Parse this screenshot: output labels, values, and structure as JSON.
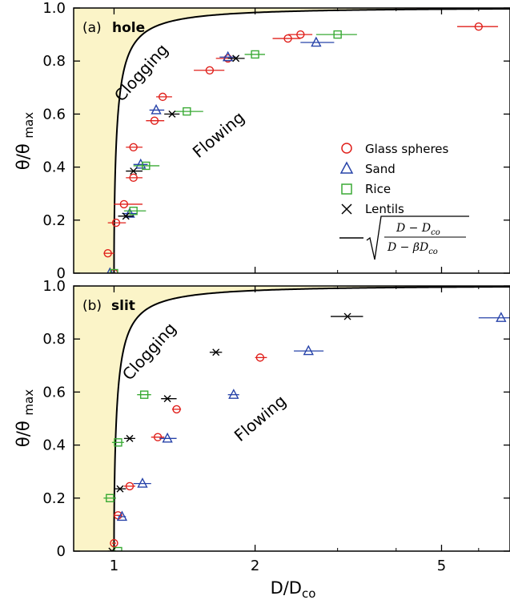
{
  "chart_data": [
    {
      "type": "scatter",
      "id": "hole",
      "panel_tag": "(a)",
      "title": "hole",
      "xlabel": "",
      "ylabel": "θ/θmax",
      "xscale": "log",
      "xlim": [
        0.82,
        7.0
      ],
      "ylim": [
        0,
        1.0
      ],
      "yticks": [
        0,
        0.2,
        0.4,
        0.6,
        0.8,
        1.0
      ],
      "ytick_labels": [
        "0",
        "0.2",
        "0.4",
        "0.6",
        "0.8",
        "1.0"
      ],
      "xticks": [
        1,
        2,
        5
      ],
      "region_labels": {
        "upper": "Clogging",
        "lower": "Flowing"
      },
      "legend": {
        "placement": "right-middle"
      },
      "curve": {
        "beta": 0.965
      },
      "series": [
        {
          "name": "Glass spheres",
          "marker": "circle",
          "color": "#e0201b",
          "points": [
            {
              "x": 0.97,
              "y": 0.075,
              "xerr": [
                0.95,
                1.0
              ]
            },
            {
              "x": 1.0,
              "y": 0.0,
              "xerr": [
                0.99,
                1.01
              ]
            },
            {
              "x": 1.01,
              "y": 0.19,
              "xerr": [
                0.97,
                1.06
              ]
            },
            {
              "x": 1.05,
              "y": 0.26,
              "xerr": [
                1.0,
                1.15
              ]
            },
            {
              "x": 1.1,
              "y": 0.36,
              "xerr": [
                1.06,
                1.15
              ]
            },
            {
              "x": 1.1,
              "y": 0.475,
              "xerr": [
                1.06,
                1.15
              ]
            },
            {
              "x": 1.22,
              "y": 0.575,
              "xerr": [
                1.17,
                1.28
              ]
            },
            {
              "x": 1.27,
              "y": 0.665,
              "xerr": [
                1.23,
                1.33
              ]
            },
            {
              "x": 1.6,
              "y": 0.765,
              "xerr": [
                1.48,
                1.72
              ]
            },
            {
              "x": 1.75,
              "y": 0.81,
              "xerr": [
                1.65,
                1.82
              ]
            },
            {
              "x": 2.35,
              "y": 0.885,
              "xerr": [
                2.18,
                2.5
              ]
            },
            {
              "x": 2.5,
              "y": 0.9,
              "xerr": [
                2.35,
                2.65
              ]
            },
            {
              "x": 6.0,
              "y": 0.93,
              "xerr": [
                5.4,
                6.6
              ]
            }
          ]
        },
        {
          "name": "Sand",
          "marker": "triangle",
          "color": "#2743a9",
          "points": [
            {
              "x": 0.98,
              "y": 0.0,
              "xerr": [
                0.97,
                1.0
              ]
            },
            {
              "x": 1.08,
              "y": 0.225,
              "xerr": [
                1.04,
                1.12
              ]
            },
            {
              "x": 1.14,
              "y": 0.41,
              "xerr": [
                1.1,
                1.18
              ]
            },
            {
              "x": 1.23,
              "y": 0.615,
              "xerr": [
                1.19,
                1.28
              ]
            },
            {
              "x": 1.75,
              "y": 0.815,
              "xerr": [
                1.68,
                1.82
              ]
            },
            {
              "x": 2.7,
              "y": 0.87,
              "xerr": [
                2.5,
                2.95
              ]
            }
          ]
        },
        {
          "name": "Rice",
          "marker": "square",
          "color": "#3aaa35",
          "points": [
            {
              "x": 1.0,
              "y": 0.0,
              "xerr": [
                0.99,
                1.01
              ]
            },
            {
              "x": 1.1,
              "y": 0.235,
              "xerr": [
                1.05,
                1.17
              ]
            },
            {
              "x": 1.17,
              "y": 0.405,
              "xerr": [
                1.1,
                1.25
              ]
            },
            {
              "x": 1.43,
              "y": 0.61,
              "xerr": [
                1.35,
                1.55
              ]
            },
            {
              "x": 2.0,
              "y": 0.825,
              "xerr": [
                1.9,
                2.1
              ]
            },
            {
              "x": 3.0,
              "y": 0.9,
              "xerr": [
                2.7,
                3.3
              ]
            }
          ]
        },
        {
          "name": "Lentils",
          "marker": "cross",
          "color": "#000000",
          "points": [
            {
              "x": 1.06,
              "y": 0.215,
              "xerr": [
                1.02,
                1.1
              ]
            },
            {
              "x": 1.1,
              "y": 0.385,
              "xerr": [
                1.06,
                1.15
              ]
            },
            {
              "x": 1.33,
              "y": 0.6,
              "xerr": [
                1.28,
                1.38
              ]
            },
            {
              "x": 1.82,
              "y": 0.81,
              "xerr": [
                1.75,
                1.9
              ]
            }
          ]
        }
      ]
    },
    {
      "type": "scatter",
      "id": "slit",
      "panel_tag": "(b)",
      "title": "slit",
      "xlabel": "D/Dco",
      "ylabel": "θ/θmax",
      "xscale": "log",
      "xlim": [
        0.82,
        7.0
      ],
      "ylim": [
        0,
        1.0
      ],
      "yticks": [
        0,
        0.2,
        0.4,
        0.6,
        0.8,
        1.0
      ],
      "ytick_labels": [
        "0",
        "0.2",
        "0.4",
        "0.6",
        "0.8",
        "1.0"
      ],
      "xticks": [
        1,
        2,
        5
      ],
      "xtick_labels": [
        "1",
        "2",
        "5"
      ],
      "region_labels": {
        "upper": "Clogging",
        "lower": "Flowing"
      },
      "curve": {
        "beta": 0.965
      },
      "series": [
        {
          "name": "Glass spheres",
          "marker": "circle",
          "color": "#e0201b",
          "points": [
            {
              "x": 1.0,
              "y": 0.03,
              "xerr": [
                0.99,
                1.01
              ]
            },
            {
              "x": 1.02,
              "y": 0.135,
              "xerr": [
                1.0,
                1.04
              ]
            },
            {
              "x": 1.08,
              "y": 0.245,
              "xerr": [
                1.05,
                1.11
              ]
            },
            {
              "x": 1.24,
              "y": 0.43,
              "xerr": [
                1.2,
                1.28
              ]
            },
            {
              "x": 1.36,
              "y": 0.535,
              "xerr": [
                1.33,
                1.39
              ]
            },
            {
              "x": 2.05,
              "y": 0.73,
              "xerr": [
                2.0,
                2.12
              ]
            }
          ]
        },
        {
          "name": "Sand",
          "marker": "triangle",
          "color": "#2743a9",
          "points": [
            {
              "x": 1.04,
              "y": 0.13,
              "xerr": [
                1.02,
                1.06
              ]
            },
            {
              "x": 1.15,
              "y": 0.255,
              "xerr": [
                1.1,
                1.2
              ]
            },
            {
              "x": 1.3,
              "y": 0.425,
              "xerr": [
                1.25,
                1.36
              ]
            },
            {
              "x": 1.8,
              "y": 0.59,
              "xerr": [
                1.75,
                1.85
              ]
            },
            {
              "x": 2.6,
              "y": 0.755,
              "xerr": [
                2.42,
                2.8
              ]
            },
            {
              "x": 6.7,
              "y": 0.88,
              "xerr": [
                6.0,
                7.0
              ]
            }
          ]
        },
        {
          "name": "Rice",
          "marker": "square",
          "color": "#3aaa35",
          "points": [
            {
              "x": 1.02,
              "y": 0.0,
              "xerr": [
                1.0,
                1.04
              ]
            },
            {
              "x": 0.98,
              "y": 0.2,
              "xerr": [
                0.95,
                1.01
              ]
            },
            {
              "x": 1.02,
              "y": 0.41,
              "xerr": [
                0.99,
                1.05
              ]
            },
            {
              "x": 1.16,
              "y": 0.59,
              "xerr": [
                1.12,
                1.2
              ]
            }
          ]
        },
        {
          "name": "Lentils",
          "marker": "cross",
          "color": "#000000",
          "points": [
            {
              "x": 0.99,
              "y": 0.0,
              "xerr": [
                0.97,
                1.01
              ]
            },
            {
              "x": 1.03,
              "y": 0.235,
              "xerr": [
                1.0,
                1.06
              ]
            },
            {
              "x": 1.08,
              "y": 0.425,
              "xerr": [
                1.05,
                1.11
              ]
            },
            {
              "x": 1.3,
              "y": 0.575,
              "xerr": [
                1.26,
                1.36
              ]
            },
            {
              "x": 1.65,
              "y": 0.75,
              "xerr": [
                1.6,
                1.7
              ]
            },
            {
              "x": 3.15,
              "y": 0.885,
              "xerr": [
                2.9,
                3.4
              ]
            }
          ]
        }
      ]
    }
  ],
  "legend_entries": [
    "Glass spheres",
    "Sand",
    "Rice",
    "Lentils"
  ],
  "formula": {
    "numerator": "D − D",
    "numerator_sub": "co",
    "denominator": "D − βD",
    "denominator_sub": "co"
  },
  "colors": {
    "clogging_fill": "#fbf4c8",
    "glass": "#e0201b",
    "sand": "#2743a9",
    "rice": "#3aaa35",
    "lentils": "#000000"
  }
}
